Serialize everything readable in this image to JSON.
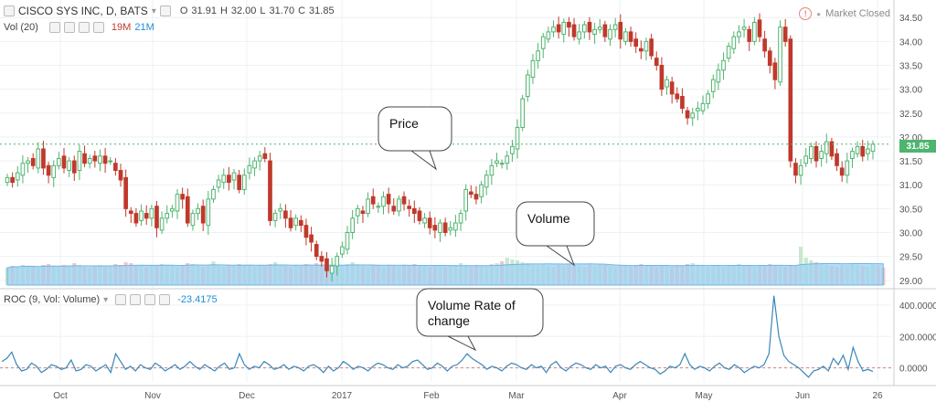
{
  "header": {
    "symbol_title": "CISCO SYS INC, D, BATS",
    "ohlc": {
      "o_label": "O",
      "o": "31.91",
      "h_label": "H",
      "h": "32.00",
      "l_label": "L",
      "l": "31.70",
      "c_label": "C",
      "c": "31.85"
    },
    "market_status": "Market Closed",
    "vol_label": "Vol (20)",
    "vol_val_1": "19M",
    "vol_val_2": "21M",
    "roc_label": "ROC (9, Vol: Volume)",
    "roc_value": "-23.4175",
    "last_price_tag": "31.85"
  },
  "colors": {
    "up": "#4fb46f",
    "down": "#c0392b",
    "volume_fill": "#9dd0f2",
    "roc_line": "#3a86b8",
    "up_hex_vol": "#c9e8cf",
    "down_hex_vol": "#f4c6c2"
  },
  "annotations": [
    {
      "name": "price-callout",
      "text": "Price"
    },
    {
      "name": "volume-callout",
      "text": "Volume"
    },
    {
      "name": "roc-callout",
      "text": "Volume Rate of change"
    }
  ],
  "chart_data": [
    {
      "type": "candlestick",
      "title": "CISCO SYS INC, D, BATS",
      "x_tick_labels": [
        "Oct",
        "Nov",
        "Dec",
        "2017",
        "Feb",
        "Mar",
        "Apr",
        "May",
        "Jun",
        "26"
      ],
      "y_axis_labels": [
        "29.00",
        "29.50",
        "30.00",
        "30.50",
        "31.00",
        "31.50",
        "32.00",
        "32.50",
        "33.00",
        "33.50",
        "34.00",
        "34.50"
      ],
      "ylim": [
        28.9,
        34.6
      ],
      "grid": true,
      "close_values": [
        31.15,
        31.05,
        31.25,
        31.45,
        31.5,
        31.4,
        31.75,
        31.35,
        31.2,
        31.4,
        31.55,
        31.35,
        31.5,
        31.25,
        31.7,
        31.45,
        31.55,
        31.5,
        31.6,
        31.45,
        31.5,
        31.3,
        31.1,
        30.5,
        30.4,
        30.2,
        30.45,
        30.3,
        30.5,
        30.1,
        30.3,
        30.4,
        30.5,
        30.8,
        30.7,
        30.2,
        30.4,
        30.5,
        30.2,
        30.7,
        30.9,
        31.1,
        31.2,
        31.05,
        31.25,
        30.9,
        31.2,
        31.4,
        31.5,
        31.6,
        31.55,
        30.25,
        30.4,
        30.5,
        30.3,
        30.1,
        30.3,
        30.15,
        29.9,
        29.8,
        29.5,
        29.4,
        29.2,
        29.3,
        29.5,
        29.7,
        30.0,
        30.3,
        30.5,
        30.4,
        30.7,
        30.6,
        30.55,
        30.75,
        30.6,
        30.45,
        30.7,
        30.6,
        30.5,
        30.4,
        30.25,
        30.3,
        30.1,
        30.05,
        30.2,
        30.0,
        30.1,
        30.2,
        30.4,
        30.9,
        30.8,
        30.7,
        31.0,
        31.2,
        31.4,
        31.5,
        31.45,
        31.6,
        31.8,
        32.2,
        32.8,
        33.3,
        33.6,
        33.8,
        34.1,
        34.2,
        34.3,
        34.2,
        34.4,
        34.3,
        34.1,
        34.2,
        34.35,
        34.2,
        34.25,
        34.3,
        34.1,
        34.25,
        34.35,
        34.05,
        34.2,
        34.0,
        33.9,
        33.8,
        34.0,
        33.7,
        33.5,
        33.0,
        33.2,
        32.9,
        32.8,
        32.6,
        32.4,
        32.5,
        32.6,
        32.7,
        32.9,
        33.2,
        33.4,
        33.6,
        33.9,
        34.1,
        34.2,
        34.3,
        34.0,
        34.4,
        34.1,
        33.8,
        33.5,
        33.2,
        34.3,
        34.0,
        31.5,
        31.2,
        31.4,
        31.6,
        31.8,
        31.5,
        31.7,
        31.9,
        31.6,
        31.4,
        31.2,
        31.5,
        31.7,
        31.8,
        31.6,
        31.75,
        31.85
      ]
    },
    {
      "type": "bar",
      "title": "Vol (20)",
      "note": "volume histogram with moving-average area",
      "values": [
        19,
        21,
        20,
        22,
        21,
        20,
        19,
        22,
        23,
        21,
        20,
        22,
        21,
        24,
        22,
        20,
        19,
        21,
        22,
        20,
        21,
        23,
        22,
        25,
        24,
        22,
        21,
        20,
        22,
        21,
        23,
        22,
        21,
        20,
        22,
        24,
        23,
        21,
        20,
        22,
        26,
        21,
        20,
        22,
        21,
        23,
        22,
        21,
        20,
        22,
        21,
        23,
        25,
        22,
        21,
        20,
        22,
        21,
        23,
        22,
        24,
        22,
        21,
        20,
        22,
        21,
        23,
        25,
        22,
        21,
        20,
        22,
        21,
        20,
        22,
        21,
        20,
        22,
        21,
        23,
        22,
        21,
        20,
        22,
        21,
        20,
        21,
        22,
        24,
        21,
        20,
        22,
        21,
        20,
        23,
        24,
        26,
        30,
        28,
        27,
        25,
        24,
        22,
        21,
        22,
        21,
        20,
        22,
        21,
        23,
        22,
        21,
        20,
        22,
        21,
        23,
        22,
        21,
        20,
        22,
        21,
        20,
        22,
        23,
        22,
        21,
        20,
        22,
        21,
        20,
        22,
        21,
        23,
        24,
        22,
        21,
        20,
        22,
        21,
        20,
        22,
        21,
        23,
        22,
        21,
        20,
        22,
        21,
        23,
        22,
        21,
        20,
        22,
        21,
        42,
        30,
        27,
        25,
        24,
        22,
        21,
        20,
        22,
        21,
        23,
        22,
        21,
        20,
        22,
        21,
        19
      ]
    },
    {
      "type": "line",
      "title": "ROC (9, Vol: Volume)",
      "y_axis_labels": [
        "400.0000",
        "200.0000",
        "0.0000"
      ],
      "ylim": [
        -90,
        470
      ],
      "values": [
        40,
        60,
        100,
        20,
        -20,
        -10,
        30,
        10,
        -30,
        -10,
        20,
        10,
        -10,
        0,
        50,
        -20,
        -10,
        20,
        10,
        -20,
        0,
        20,
        -30,
        90,
        40,
        -10,
        10,
        -20,
        20,
        0,
        -10,
        30,
        10,
        -20,
        0,
        20,
        -10,
        10,
        40,
        10,
        -10,
        20,
        0,
        -20,
        10,
        30,
        -10,
        0,
        90,
        20,
        -10,
        10,
        0,
        40,
        20,
        -10,
        0,
        20,
        -10,
        10,
        0,
        -20,
        10,
        20,
        0,
        -30,
        10,
        -20,
        0,
        40,
        20,
        -10,
        10,
        0,
        -20,
        10,
        30,
        20,
        0,
        -10,
        20,
        0,
        10,
        40,
        50,
        20,
        -10,
        0,
        30,
        10,
        -20,
        10,
        20,
        50,
        90,
        60,
        40,
        20,
        -10,
        10,
        0,
        -20,
        10,
        30,
        20,
        0,
        -10,
        20,
        0,
        10,
        -30,
        20,
        40,
        0,
        -20,
        10,
        30,
        20,
        0,
        -10,
        20,
        0,
        10,
        -30,
        10,
        20,
        0,
        -10,
        20,
        40,
        20,
        0,
        -10,
        -40,
        -20,
        10,
        0,
        20,
        90,
        20,
        -10,
        10,
        0,
        -20,
        10,
        30,
        0,
        -10,
        20,
        0,
        -30,
        -10,
        10,
        0,
        20,
        90,
        460,
        200,
        80,
        40,
        20,
        0,
        -30,
        -60,
        -20,
        -10,
        10,
        -20,
        60,
        20,
        80,
        -10,
        130,
        40,
        -20,
        -10,
        -23
      ]
    }
  ]
}
